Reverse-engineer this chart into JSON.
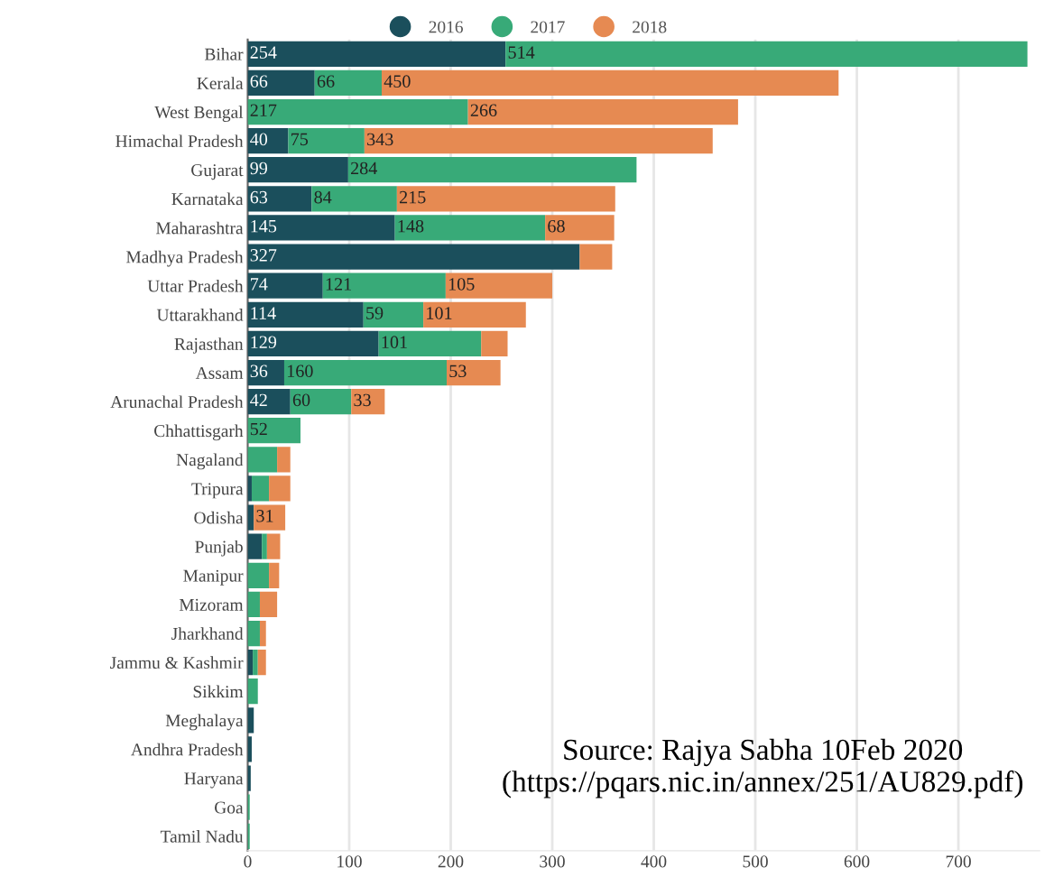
{
  "chart_data": {
    "type": "bar",
    "orientation": "horizontal",
    "stacked": true,
    "categories": [
      "Bihar",
      "Kerala",
      "West Bengal",
      "Himachal Pradesh",
      "Gujarat",
      "Karnataka",
      "Maharashtra",
      "Madhya Pradesh",
      "Uttar Pradesh",
      "Uttarakhand",
      "Rajasthan",
      "Assam",
      "Arunachal Pradesh",
      "Chhattisgarh",
      "Nagaland",
      "Tripura",
      "Odisha",
      "Punjab",
      "Manipur",
      "Mizoram",
      "Jharkhand",
      "Jammu & Kashmir",
      "Sikkim",
      "Meghalaya",
      "Andhra Pradesh",
      "Haryana",
      "Goa",
      "Tamil Nadu"
    ],
    "series": [
      {
        "name": "2016",
        "color": "#1b4f5c",
        "values": [
          254,
          66,
          null,
          40,
          99,
          63,
          145,
          327,
          74,
          114,
          129,
          36,
          42,
          null,
          null,
          4,
          6,
          14,
          null,
          null,
          null,
          5,
          null,
          6,
          4,
          3,
          null,
          null
        ],
        "value_labels": [
          "254",
          "66",
          null,
          "40",
          "99",
          "63",
          "145",
          "327",
          "74",
          "114",
          "129",
          "36",
          "42",
          null,
          null,
          null,
          null,
          null,
          null,
          null,
          null,
          null,
          null,
          null,
          null,
          null,
          null,
          null
        ]
      },
      {
        "name": "2017",
        "color": "#38aa78",
        "values": [
          514,
          66,
          217,
          75,
          284,
          84,
          148,
          null,
          121,
          59,
          101,
          160,
          60,
          52,
          29,
          17,
          null,
          5,
          21,
          12,
          12,
          5,
          10,
          null,
          null,
          null,
          2,
          2
        ],
        "value_labels": [
          "514",
          "66",
          "217",
          "75",
          "284",
          "84",
          "148",
          null,
          "121",
          "59",
          "101",
          "160",
          "60",
          "52",
          null,
          null,
          null,
          null,
          null,
          null,
          null,
          null,
          null,
          null,
          null,
          null,
          null,
          null
        ]
      },
      {
        "name": "2018",
        "color": "#e68a52",
        "values": [
          null,
          450,
          266,
          343,
          null,
          215,
          68,
          32,
          105,
          101,
          26,
          53,
          33,
          null,
          13,
          21,
          31,
          13,
          10,
          17,
          6,
          8,
          null,
          null,
          null,
          null,
          null,
          null
        ],
        "value_labels": [
          null,
          "450",
          "266",
          "343",
          null,
          "215",
          "68",
          null,
          "105",
          "101",
          null,
          "53",
          "33",
          null,
          null,
          null,
          "31",
          null,
          null,
          null,
          null,
          null,
          null,
          null,
          null,
          null,
          null,
          null
        ]
      }
    ],
    "xlim": [
      0,
      780
    ],
    "xticks": [
      0,
      100,
      200,
      300,
      400,
      500,
      600,
      700
    ],
    "grid": "x",
    "legend": "top",
    "annotations": [
      "Source: Rajya Sabha 10Feb 2020\n(https://pqars.nic.in/annex/251/AU829.pdf)"
    ]
  }
}
